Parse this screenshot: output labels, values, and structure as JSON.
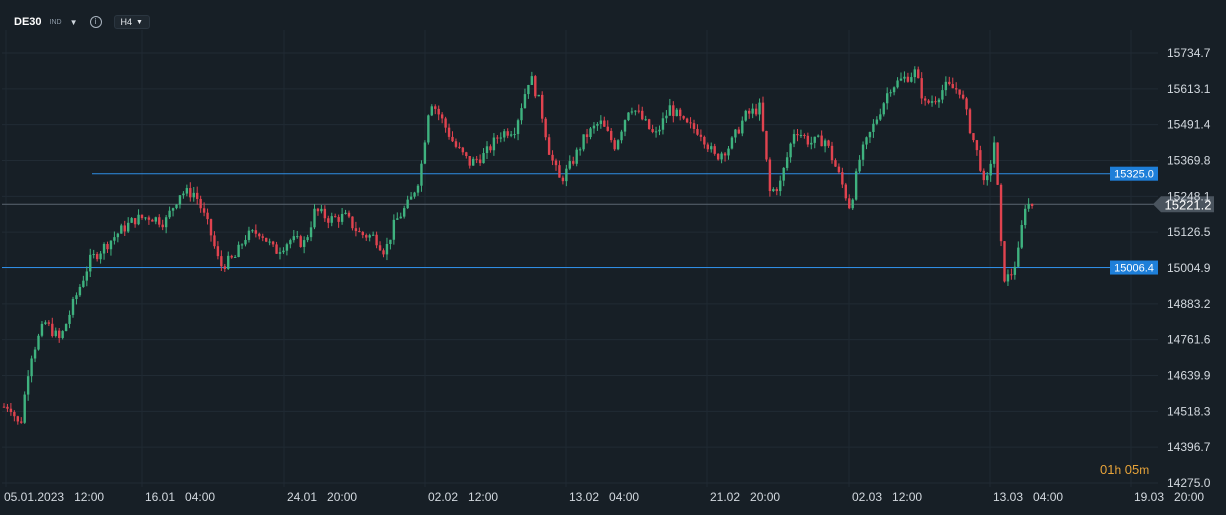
{
  "toolbar": {
    "symbol": "DE30",
    "market": "IND",
    "timeframe": "H4"
  },
  "countdown": {
    "hours": "01",
    "h_unit": "h",
    "minutes": "05",
    "m_unit": "m"
  },
  "colors": {
    "background": "#171f26",
    "up": "#3fb27f",
    "down": "#e0434f",
    "level_line": "#2f8de4",
    "current_price_tag": "#4a545e"
  },
  "chart_data": {
    "type": "candlestick",
    "title": "",
    "y_ticks": [
      "15734.7",
      "15613.1",
      "15491.4",
      "15369.8",
      "15248.1",
      "15126.5",
      "15004.9",
      "14883.2",
      "14761.6",
      "14639.9",
      "14518.3",
      "14396.7",
      "14275.0"
    ],
    "x_ticks": [
      "05.01.2023",
      "12:00",
      "16.01",
      "04:00",
      "24.01",
      "20:00",
      "02.02",
      "12:00",
      "13.02",
      "04:00",
      "21.02",
      "20:00",
      "02.03",
      "12:00",
      "13.03",
      "04:00",
      "19.03",
      "20:00"
    ],
    "ylim": [
      14275.0,
      15734.7
    ],
    "levels": [
      {
        "label": "15325.0",
        "value": 15325.0
      },
      {
        "label": "15006.4",
        "value": 15006.4
      }
    ],
    "current_price": {
      "label": "15221.2",
      "value": 15221.2
    },
    "close_path": [
      [
        0,
        14530
      ],
      [
        10,
        14540
      ],
      [
        20,
        14460
      ],
      [
        30,
        14700
      ],
      [
        45,
        14820
      ],
      [
        60,
        14760
      ],
      [
        75,
        14900
      ],
      [
        90,
        15030
      ],
      [
        105,
        15080
      ],
      [
        120,
        15130
      ],
      [
        135,
        15170
      ],
      [
        150,
        15180
      ],
      [
        165,
        15160
      ],
      [
        180,
        15260
      ],
      [
        195,
        15260
      ],
      [
        210,
        15130
      ],
      [
        220,
        15010
      ],
      [
        235,
        15040
      ],
      [
        245,
        15110
      ],
      [
        260,
        15130
      ],
      [
        275,
        15060
      ],
      [
        290,
        15100
      ],
      [
        305,
        15090
      ],
      [
        315,
        15200
      ],
      [
        330,
        15170
      ],
      [
        345,
        15180
      ],
      [
        360,
        15120
      ],
      [
        375,
        15110
      ],
      [
        385,
        15060
      ],
      [
        395,
        15160
      ],
      [
        410,
        15230
      ],
      [
        420,
        15320
      ],
      [
        430,
        15580
      ],
      [
        440,
        15520
      ],
      [
        455,
        15420
      ],
      [
        470,
        15360
      ],
      [
        485,
        15390
      ],
      [
        500,
        15460
      ],
      [
        515,
        15480
      ],
      [
        530,
        15660
      ],
      [
        540,
        15560
      ],
      [
        550,
        15390
      ],
      [
        560,
        15300
      ],
      [
        570,
        15350
      ],
      [
        585,
        15450
      ],
      [
        600,
        15500
      ],
      [
        615,
        15420
      ],
      [
        630,
        15560
      ],
      [
        640,
        15520
      ],
      [
        655,
        15450
      ],
      [
        670,
        15550
      ],
      [
        685,
        15490
      ],
      [
        700,
        15470
      ],
      [
        715,
        15380
      ],
      [
        730,
        15420
      ],
      [
        745,
        15520
      ],
      [
        760,
        15550
      ],
      [
        770,
        15260
      ],
      [
        780,
        15290
      ],
      [
        795,
        15480
      ],
      [
        810,
        15430
      ],
      [
        825,
        15440
      ],
      [
        840,
        15310
      ],
      [
        850,
        15210
      ],
      [
        860,
        15380
      ],
      [
        875,
        15500
      ],
      [
        890,
        15620
      ],
      [
        905,
        15650
      ],
      [
        915,
        15670
      ],
      [
        925,
        15560
      ],
      [
        935,
        15580
      ],
      [
        945,
        15620
      ],
      [
        960,
        15610
      ],
      [
        970,
        15480
      ],
      [
        980,
        15360
      ],
      [
        985,
        15260
      ],
      [
        995,
        15450
      ],
      [
        1000,
        15110
      ],
      [
        1005,
        14960
      ],
      [
        1012,
        14990
      ],
      [
        1018,
        15050
      ],
      [
        1025,
        15220
      ],
      [
        1035,
        15221
      ]
    ]
  }
}
